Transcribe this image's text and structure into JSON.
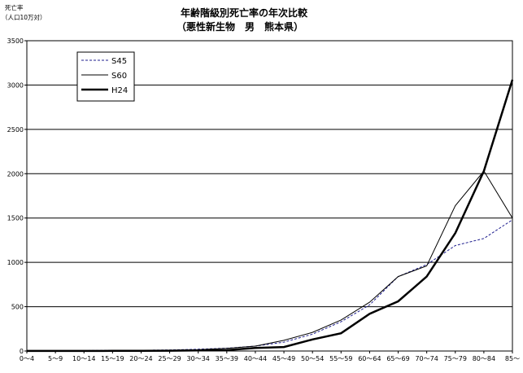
{
  "chart_data": {
    "type": "line",
    "title": "年齢階級別死亡率の年次比較",
    "subtitle": "（悪性新生物　男　熊本県）",
    "ylabel": "死亡率",
    "ylabel_unit": "（人口10万対）",
    "ylim": [
      0,
      3500
    ],
    "yticks": [
      "0",
      "500",
      "1000",
      "1500",
      "2000",
      "2500",
      "3000",
      "3500"
    ],
    "grid": true,
    "legend_position": "top-left",
    "categories": [
      "0～4",
      "5～9",
      "10～14",
      "15～19",
      "20～24",
      "25～29",
      "30～34",
      "35～39",
      "40～44",
      "45～49",
      "50～54",
      "55～59",
      "60～64",
      "65～69",
      "70～74",
      "75～79",
      "80～84",
      "85～"
    ],
    "series": [
      {
        "name": "S45",
        "color": "#1f1f8f",
        "style": "dashed",
        "width": 1,
        "values": [
          3,
          3,
          5,
          7,
          8,
          12,
          20,
          32,
          55,
          100,
          190,
          330,
          520,
          840,
          975,
          1190,
          1270,
          1480
        ]
      },
      {
        "name": "S60",
        "color": "#000000",
        "style": "solid",
        "width": 1,
        "values": [
          2,
          2,
          3,
          4,
          6,
          8,
          15,
          30,
          55,
          120,
          210,
          350,
          550,
          840,
          960,
          1640,
          2030,
          1500
        ]
      },
      {
        "name": "H24",
        "color": "#000000",
        "style": "solid",
        "width": 2.5,
        "values": [
          1,
          1,
          1,
          2,
          3,
          4,
          6,
          10,
          35,
          45,
          130,
          200,
          420,
          560,
          840,
          1330,
          2030,
          3060
        ]
      }
    ]
  }
}
